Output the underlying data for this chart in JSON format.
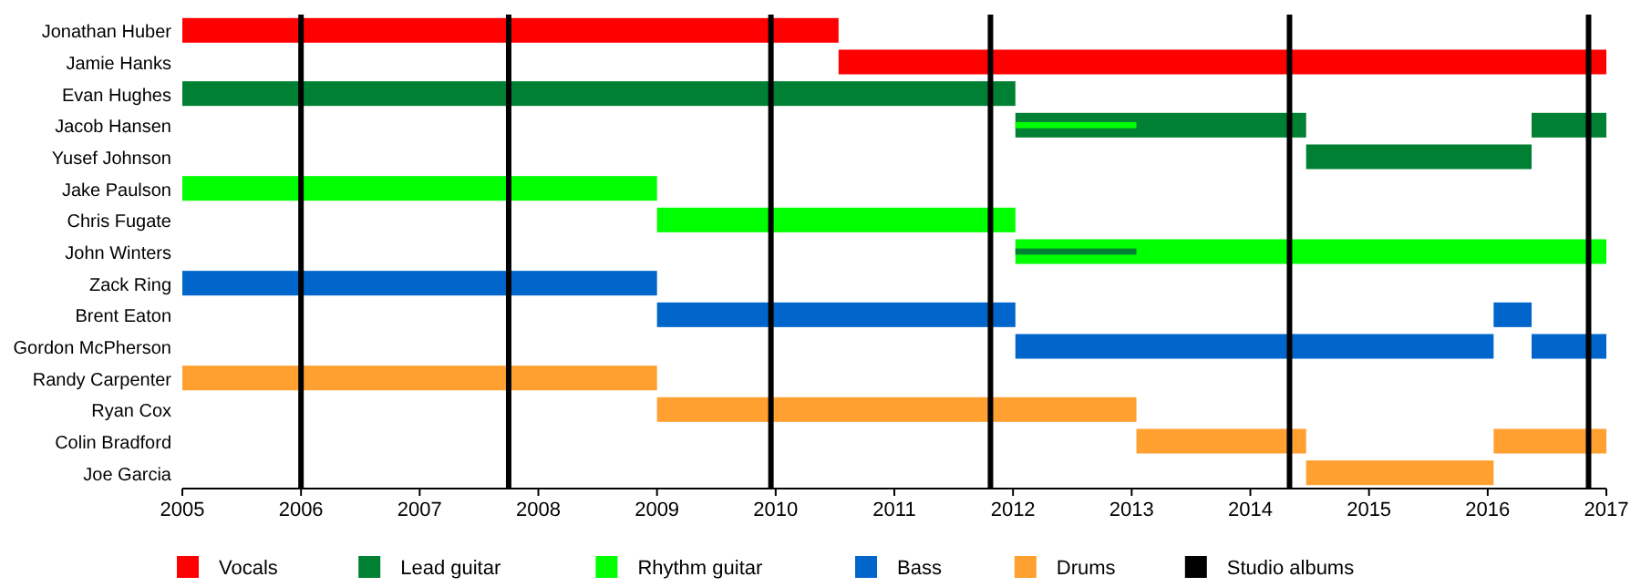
{
  "chart_data": {
    "type": "bar",
    "orientation": "horizontal",
    "categories": [
      "Jonathan Huber",
      "Jamie Hanks",
      "Evan Hughes",
      "Jacob Hansen",
      "Yusef Johnson",
      "Jake Paulson",
      "Chris Fugate",
      "John Winters",
      "Zack Ring",
      "Brent Eaton",
      "Gordon McPherson",
      "Randy Carpenter",
      "Ryan Cox",
      "Colin Bradford",
      "Joe Garcia"
    ],
    "series": [
      {
        "name": "Vocals",
        "color": "#ff0000",
        "base": [
          2005,
          2010.53,
          null,
          null,
          null,
          null,
          null,
          null,
          null,
          null,
          null,
          null,
          null,
          null,
          null
        ],
        "values": [
          5.53,
          6.47,
          null,
          null,
          null,
          null,
          null,
          null,
          null,
          null,
          null,
          null,
          null,
          null,
          null
        ]
      },
      {
        "name": "Lead guitar",
        "color": "#008033",
        "base": [
          null,
          null,
          2005,
          2012.02,
          2014.47,
          null,
          null,
          null,
          null,
          null,
          null,
          null,
          null,
          null,
          null
        ],
        "values": [
          null,
          null,
          7.02,
          2.45,
          1.9,
          null,
          null,
          null,
          null,
          null,
          null,
          null,
          null,
          null,
          null
        ]
      },
      {
        "color": "#008033",
        "base": [
          null,
          null,
          null,
          2016.37,
          null,
          null,
          null,
          2012.02,
          null,
          null,
          null,
          null,
          null,
          null,
          null
        ],
        "values": [
          null,
          null,
          null,
          0.63,
          null,
          null,
          null,
          1.02,
          null,
          null,
          null,
          null,
          null,
          null,
          null
        ]
      },
      {
        "name": "Rhythm guitar",
        "color": "#00ff00",
        "base": [
          null,
          null,
          null,
          null,
          null,
          2005,
          2009,
          2012.02,
          null,
          null,
          null,
          null,
          null,
          null,
          null
        ],
        "values": [
          null,
          null,
          null,
          null,
          null,
          4,
          3.02,
          4.98,
          null,
          null,
          null,
          null,
          null,
          null,
          null
        ]
      },
      {
        "color": "#00ff00",
        "base": [
          null,
          null,
          null,
          2012.02,
          null,
          null,
          null,
          null,
          null,
          null,
          null,
          null,
          null,
          null,
          null
        ],
        "values": [
          null,
          null,
          null,
          1.02,
          null,
          null,
          null,
          null,
          null,
          null,
          null,
          null,
          null,
          null,
          null
        ]
      },
      {
        "name": "Bass",
        "color": "#0066cc",
        "base": [
          null,
          null,
          null,
          null,
          null,
          null,
          null,
          null,
          2005,
          2009,
          2012.02,
          null,
          null,
          null,
          null
        ],
        "values": [
          null,
          null,
          null,
          null,
          null,
          null,
          null,
          null,
          4,
          3.02,
          4.03,
          null,
          null,
          null,
          null
        ]
      },
      {
        "color": "#0066cc",
        "base": [
          null,
          null,
          null,
          null,
          null,
          null,
          null,
          null,
          null,
          2016.05,
          2016.37,
          null,
          null,
          null,
          null
        ],
        "values": [
          null,
          null,
          null,
          null,
          null,
          null,
          null,
          null,
          null,
          0.32,
          0.63,
          null,
          null,
          null,
          null
        ]
      },
      {
        "name": "Drums",
        "color": "#ffa030",
        "base": [
          null,
          null,
          null,
          null,
          null,
          null,
          null,
          null,
          null,
          null,
          null,
          2005,
          2009,
          2013.04,
          2014.47
        ],
        "values": [
          null,
          null,
          null,
          null,
          null,
          null,
          null,
          null,
          null,
          null,
          null,
          4,
          4.04,
          1.43,
          1.58
        ]
      },
      {
        "color": "#ffa030",
        "base": [
          null,
          null,
          null,
          null,
          null,
          null,
          null,
          null,
          null,
          null,
          null,
          null,
          null,
          2016.05,
          null
        ],
        "values": [
          null,
          null,
          null,
          null,
          null,
          null,
          null,
          null,
          null,
          null,
          null,
          null,
          null,
          0.95,
          null
        ]
      }
    ],
    "xlim": [
      2005,
      2017
    ],
    "xticks": [
      2005,
      2006,
      2007,
      2008,
      2009,
      2010,
      2011,
      2012,
      2013,
      2014,
      2015,
      2016,
      2017
    ],
    "ref_lines": [
      {
        "axis": "x",
        "value": 2006,
        "color": "#000000",
        "label": "Studio albums"
      },
      {
        "axis": "x",
        "value": 2007.75,
        "color": "#000000"
      },
      {
        "axis": "x",
        "value": 2009.96,
        "color": "#000000"
      },
      {
        "axis": "x",
        "value": 2011.81,
        "color": "#000000"
      },
      {
        "axis": "x",
        "value": 2014.33,
        "color": "#000000"
      },
      {
        "axis": "x",
        "value": 2016.85,
        "color": "#000000"
      }
    ],
    "legend": "bottom"
  }
}
